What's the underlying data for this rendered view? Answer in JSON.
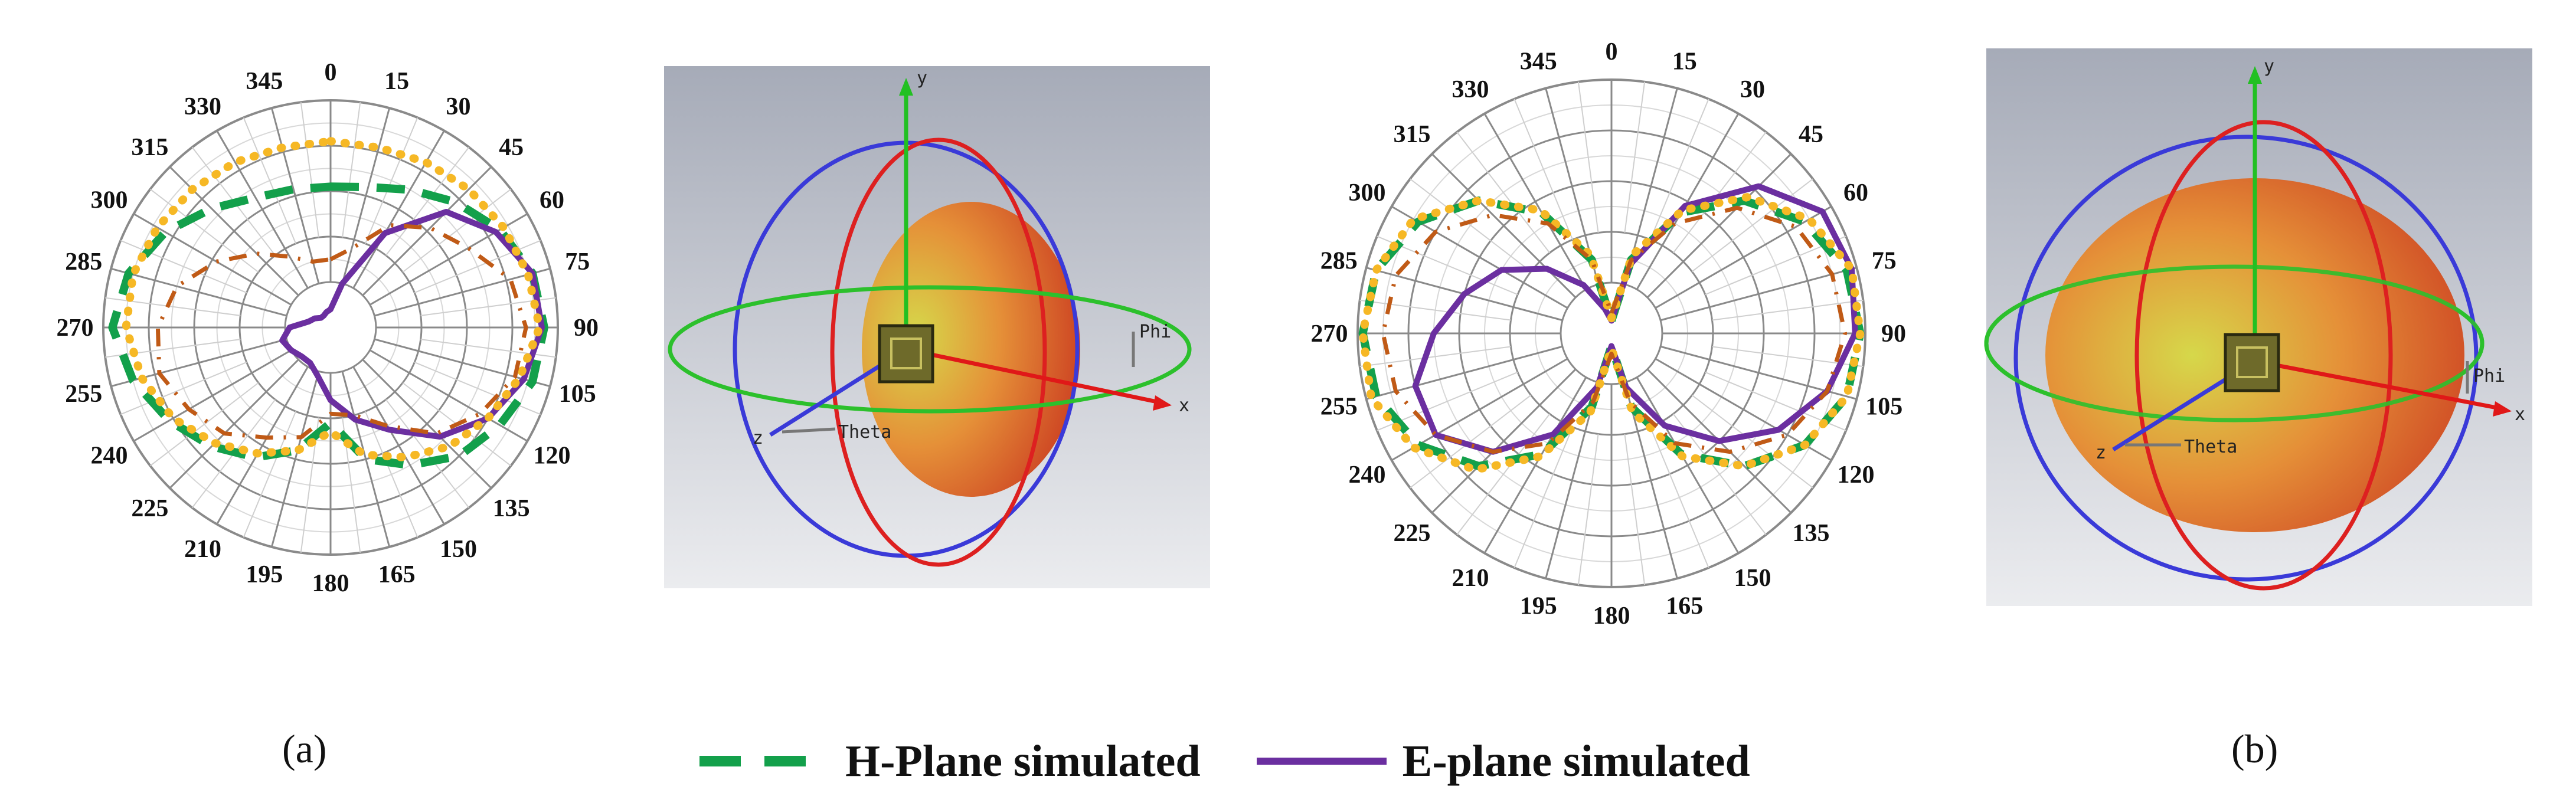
{
  "figure": {
    "panel_labels": [
      "(a)",
      "(b)"
    ],
    "legend": [
      {
        "label": "H-Plane simulated",
        "color": "#13a04b",
        "style": "dashed"
      },
      {
        "label": "E-plane simulated",
        "color": "#6b2fa0",
        "style": "solid"
      }
    ],
    "render_labels": {
      "x": "x",
      "y": "y",
      "z": "z",
      "theta": "Theta",
      "phi": "Phi"
    }
  },
  "colors": {
    "h_plane_simulated": "#13a04b",
    "e_plane_simulated": "#6b2fa0",
    "extra_dotted": "#f6b825",
    "extra_dashdot": "#c05a16"
  },
  "chart_data": [
    {
      "type": "polar",
      "panel": "(a)",
      "angle_ticks": [
        "0",
        "15",
        "30",
        "45",
        "60",
        "75",
        "90",
        "105",
        "120",
        "135",
        "150",
        "165",
        "180",
        "195",
        "210",
        "225",
        "240",
        "255",
        "270",
        "285",
        "300",
        "315",
        "330",
        "345"
      ],
      "radial_max": 1.0,
      "grid": true,
      "series": [
        {
          "name": "H-Plane simulated",
          "color": "#13a04b",
          "style": "dashed",
          "values": [
            0.62,
            0.64,
            0.7,
            0.78,
            0.86,
            0.92,
            0.94,
            0.92,
            0.86,
            0.8,
            0.7,
            0.6,
            0.42,
            0.56,
            0.66,
            0.74,
            0.82,
            0.9,
            0.96,
            0.92,
            0.84,
            0.74,
            0.66,
            0.63
          ]
        },
        {
          "name": "E-plane simulated",
          "color": "#6b2fa0",
          "style": "solid",
          "values": [
            0.08,
            0.2,
            0.48,
            0.72,
            0.84,
            0.92,
            0.93,
            0.88,
            0.8,
            0.68,
            0.52,
            0.42,
            0.32,
            0.22,
            0.18,
            0.18,
            0.2,
            0.22,
            0.18,
            0.1,
            0.08,
            0.06,
            0.06,
            0.07
          ]
        },
        {
          "color": "#f6b825",
          "style": "dotted",
          "values": [
            0.82,
            0.82,
            0.84,
            0.86,
            0.88,
            0.9,
            0.92,
            0.86,
            0.8,
            0.74,
            0.66,
            0.58,
            0.46,
            0.56,
            0.64,
            0.72,
            0.8,
            0.86,
            0.9,
            0.9,
            0.88,
            0.86,
            0.84,
            0.82
          ]
        },
        {
          "color": "#c05a16",
          "style": "dashdot",
          "values": [
            0.3,
            0.36,
            0.52,
            0.62,
            0.7,
            0.82,
            0.86,
            0.84,
            0.76,
            0.66,
            0.5,
            0.4,
            0.38,
            0.5,
            0.56,
            0.66,
            0.72,
            0.78,
            0.76,
            0.7,
            0.58,
            0.46,
            0.36,
            0.3
          ]
        }
      ]
    },
    {
      "type": "polar",
      "panel": "(b)",
      "angle_ticks": [
        "0",
        "15",
        "30",
        "45",
        "60",
        "75",
        "90",
        "105",
        "120",
        "135",
        "150",
        "165",
        "180",
        "195",
        "210",
        "225",
        "240",
        "255",
        "270",
        "285",
        "300",
        "315",
        "330",
        "345"
      ],
      "radial_max": 1.0,
      "grid": true,
      "series": [
        {
          "name": "H-Plane simulated",
          "color": "#13a04b",
          "style": "dashed",
          "values": [
            0.05,
            0.3,
            0.55,
            0.74,
            0.88,
            0.96,
            0.98,
            0.96,
            0.88,
            0.74,
            0.55,
            0.3,
            0.05,
            0.3,
            0.55,
            0.74,
            0.88,
            0.96,
            0.98,
            0.96,
            0.88,
            0.74,
            0.55,
            0.3
          ]
        },
        {
          "name": "E-plane simulated",
          "color": "#6b2fa0",
          "style": "solid",
          "values": [
            0.05,
            0.28,
            0.58,
            0.82,
            0.96,
            0.98,
            0.96,
            0.88,
            0.76,
            0.6,
            0.42,
            0.22,
            0.05,
            0.22,
            0.46,
            0.66,
            0.8,
            0.8,
            0.7,
            0.6,
            0.5,
            0.36,
            0.22,
            0.1
          ]
        },
        {
          "color": "#f6b825",
          "style": "dotted",
          "values": [
            0.06,
            0.32,
            0.56,
            0.76,
            0.9,
            0.98,
            0.98,
            0.96,
            0.88,
            0.74,
            0.56,
            0.32,
            0.06,
            0.32,
            0.56,
            0.76,
            0.9,
            0.98,
            0.98,
            0.96,
            0.9,
            0.74,
            0.56,
            0.32
          ]
        },
        {
          "color": "#c05a16",
          "style": "dashdot",
          "values": [
            0.08,
            0.3,
            0.5,
            0.7,
            0.84,
            0.9,
            0.92,
            0.88,
            0.8,
            0.66,
            0.5,
            0.28,
            0.08,
            0.28,
            0.5,
            0.66,
            0.8,
            0.88,
            0.9,
            0.88,
            0.8,
            0.66,
            0.5,
            0.3
          ]
        }
      ]
    }
  ]
}
